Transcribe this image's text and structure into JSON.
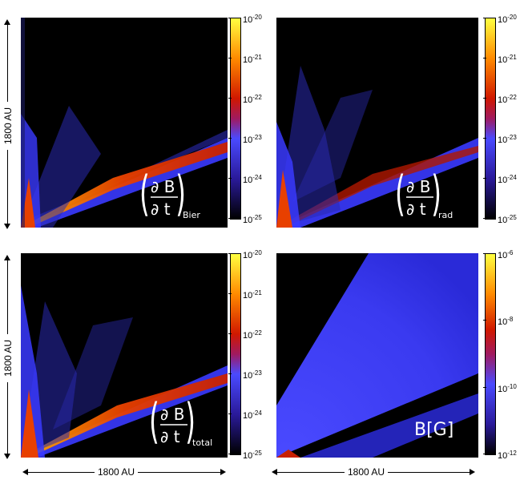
{
  "panels": [
    {
      "id": "bier",
      "label_sub": "Bier",
      "colorbar_ticks": [
        "-20",
        "-21",
        "-22",
        "-23",
        "-24",
        "-25"
      ]
    },
    {
      "id": "rad",
      "label_sub": "rad",
      "colorbar_ticks": [
        "-20",
        "-21",
        "-22",
        "-23",
        "-24",
        "-25"
      ]
    },
    {
      "id": "total",
      "label_sub": "total",
      "colorbar_ticks": [
        "-20",
        "-21",
        "-22",
        "-23",
        "-24",
        "-25"
      ]
    },
    {
      "id": "bfield",
      "label": "B[G]",
      "colorbar_ticks": [
        "-6",
        "-8",
        "-10",
        "-12"
      ]
    }
  ],
  "tick_base": "10",
  "axis_labels": {
    "left_top": "1800 AU",
    "left_bottom": "1800 AU",
    "bottom_left": "1800 AU",
    "bottom_right": "1800 AU"
  },
  "equation": {
    "numerator": "∂ B",
    "denominator": "∂ t"
  },
  "colors": {
    "background": "#000000",
    "blue": "#3a3aff",
    "orange": "#ff6a00",
    "red": "#c81e00",
    "yellow": "#ffff40"
  }
}
